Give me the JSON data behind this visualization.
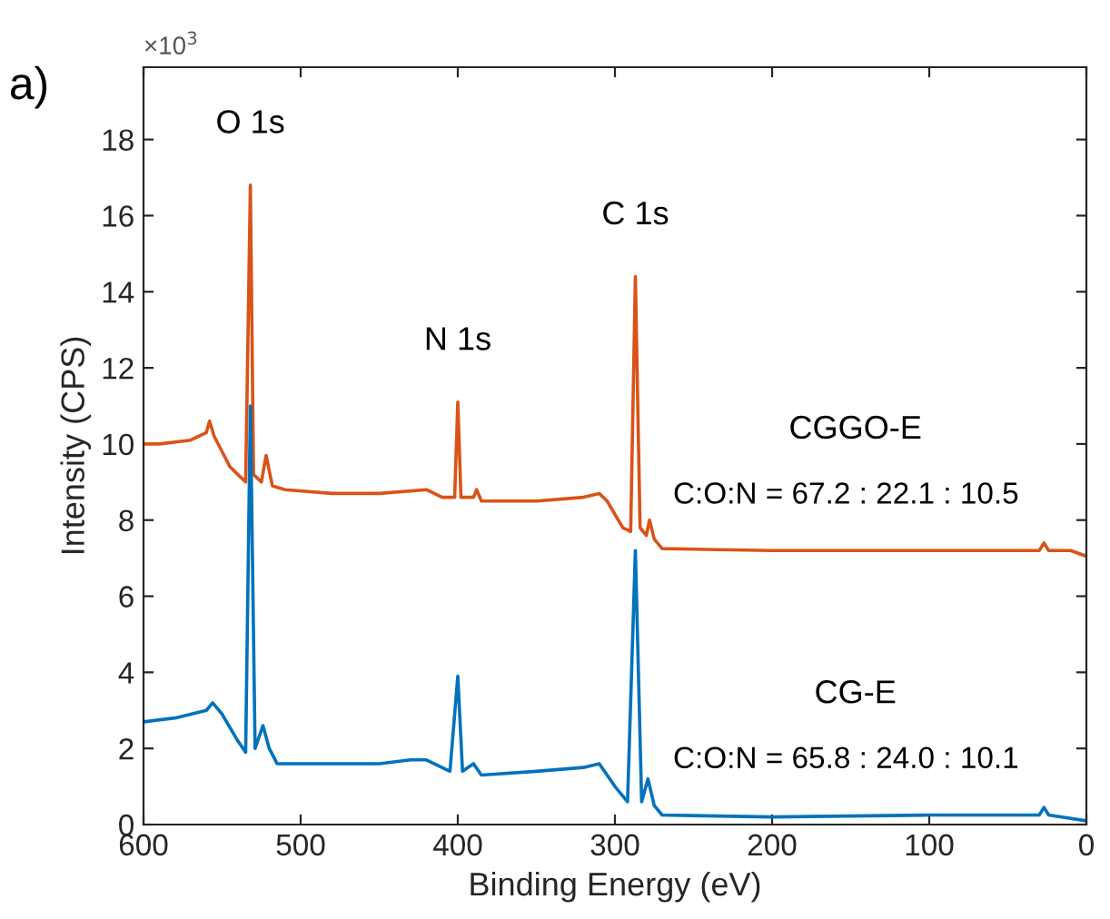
{
  "chart_data": {
    "type": "line",
    "xlabel": "Binding Energy (eV)",
    "ylabel": "Intensity (CPS)",
    "xlim": [
      600,
      0
    ],
    "xticks": [
      600,
      500,
      400,
      300,
      200,
      100,
      0
    ],
    "ylim": [
      0,
      19.9
    ],
    "yticks": [
      0,
      2,
      4,
      6,
      8,
      10,
      12,
      14,
      16,
      18
    ],
    "grid": false,
    "legend": false,
    "marker": "none",
    "line_style": "solid",
    "series": [
      {
        "color": "#d95319",
        "x": [
          600,
          590,
          570,
          560,
          558,
          555,
          545,
          535,
          532,
          530,
          525,
          522,
          518,
          510,
          480,
          450,
          420,
          410,
          402,
          400,
          398,
          390,
          388,
          385,
          350,
          320,
          310,
          305,
          295,
          290,
          287,
          284,
          280,
          278,
          275,
          270,
          200,
          100,
          30,
          27,
          24,
          10,
          0
        ],
        "values": [
          10.0,
          10.0,
          10.1,
          10.3,
          10.6,
          10.2,
          9.4,
          9.0,
          16.8,
          9.2,
          9.0,
          9.7,
          8.9,
          8.8,
          8.7,
          8.7,
          8.8,
          8.6,
          8.6,
          11.1,
          8.6,
          8.6,
          8.8,
          8.5,
          8.5,
          8.6,
          8.7,
          8.5,
          7.8,
          7.7,
          14.4,
          7.8,
          7.6,
          8.0,
          7.5,
          7.25,
          7.2,
          7.2,
          7.2,
          7.4,
          7.2,
          7.2,
          7.05
        ]
      },
      {
        "color": "#0072bd",
        "x": [
          600,
          580,
          560,
          556,
          550,
          540,
          535,
          532,
          529,
          524,
          520,
          515,
          480,
          450,
          430,
          420,
          405,
          400,
          397,
          390,
          385,
          350,
          320,
          310,
          300,
          292,
          287,
          283,
          279,
          275,
          270,
          200,
          100,
          30,
          27,
          24,
          0
        ],
        "values": [
          2.7,
          2.8,
          3.0,
          3.2,
          2.9,
          2.2,
          1.9,
          11.0,
          2.0,
          2.6,
          2.0,
          1.6,
          1.6,
          1.6,
          1.7,
          1.7,
          1.4,
          3.9,
          1.4,
          1.6,
          1.3,
          1.4,
          1.5,
          1.6,
          1.0,
          0.6,
          7.2,
          0.6,
          1.2,
          0.5,
          0.25,
          0.2,
          0.25,
          0.25,
          0.45,
          0.25,
          0.1
        ]
      }
    ],
    "annotations": [
      "a)",
      "×10$^{3}$",
      {
        "text": "O 1s",
        "x": 532,
        "y": 16.8
      },
      {
        "text": "N 1s",
        "x": 400,
        "y": 11.1
      },
      {
        "text": "C 1s",
        "x": 287,
        "y": 14.4
      },
      "CGGO-E",
      "C:O:N = 67.2 : 22.1 : 10.5",
      "CG-E",
      "C:O:N = 65.8 : 24.0 : 10.1"
    ]
  }
}
